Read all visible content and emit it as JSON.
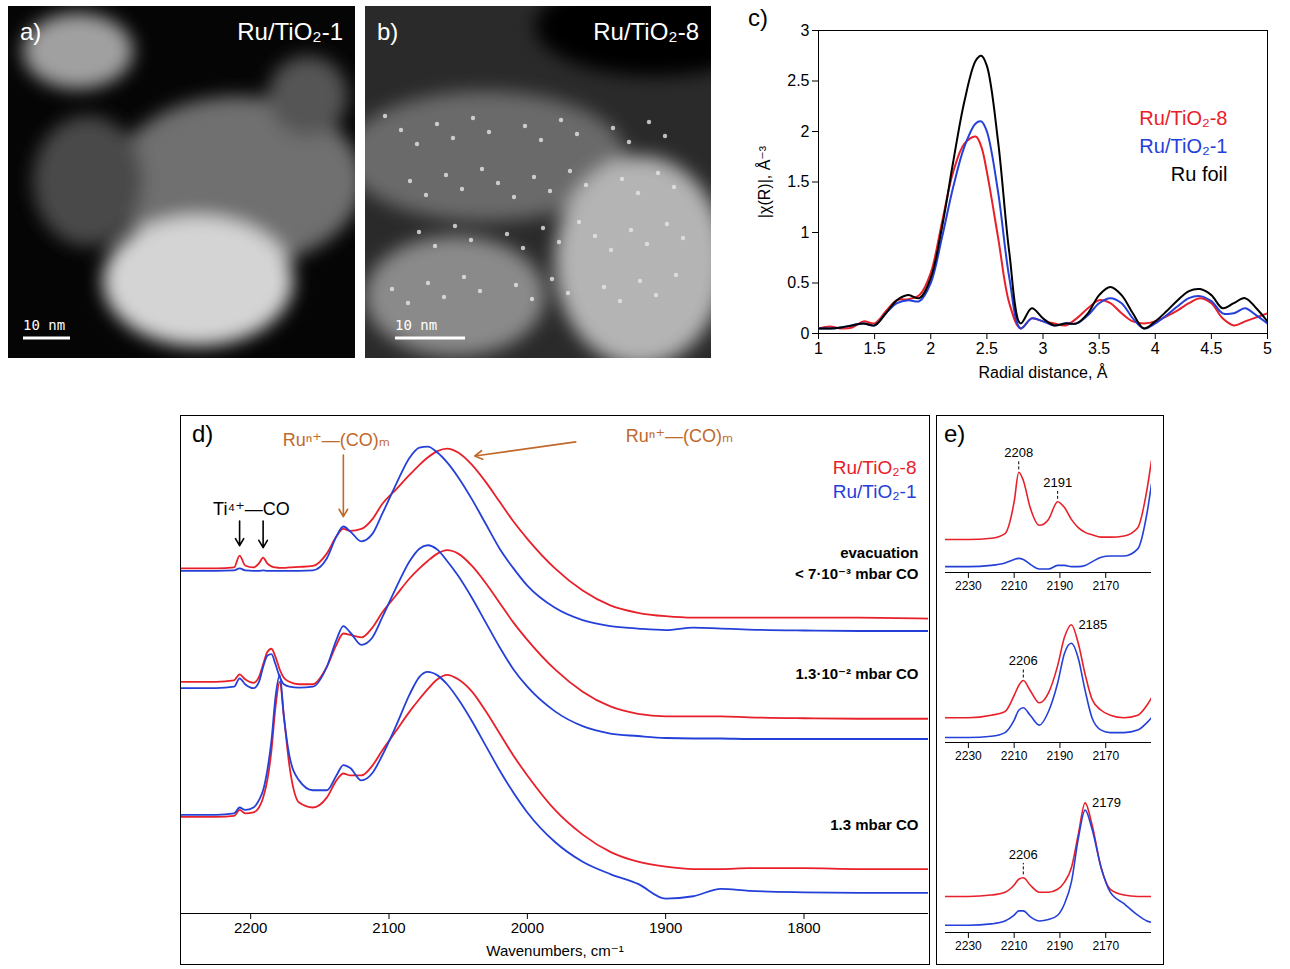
{
  "chart_data": [
    {
      "type": "image",
      "panel": "a)",
      "title": "Ru/TiO₂-1",
      "scale_bar": "10 nm"
    },
    {
      "type": "image",
      "panel": "b)",
      "title": "Ru/TiO₂-8",
      "scale_bar": "10 nm"
    },
    {
      "type": "line",
      "panel": "c)",
      "x_label": "Radial distance, Å",
      "y_label": "|χ(R)|, Å⁻³",
      "x": [
        1.0,
        1.1,
        1.2,
        1.3,
        1.4,
        1.5,
        1.6,
        1.7,
        1.8,
        1.9,
        2.0,
        2.1,
        2.2,
        2.3,
        2.4,
        2.45,
        2.5,
        2.6,
        2.7,
        2.8,
        2.9,
        3.0,
        3.1,
        3.2,
        3.3,
        3.4,
        3.5,
        3.6,
        3.7,
        3.8,
        3.9,
        4.0,
        4.1,
        4.2,
        4.3,
        4.4,
        4.5,
        4.6,
        4.7,
        4.8,
        4.9,
        5.0
      ],
      "xlim": [
        1,
        5
      ],
      "xticks": [
        1,
        1.5,
        2,
        2.5,
        3,
        3.5,
        4,
        4.5,
        5
      ],
      "ylim": [
        0,
        3
      ],
      "yticks": [
        0,
        0.5,
        1,
        1.5,
        2,
        2.5,
        3
      ],
      "legend": "top-right",
      "series": [
        {
          "name": "Ru/TiO₂-8",
          "color": "#e8202a",
          "values": [
            0.05,
            0.07,
            0.05,
            0.06,
            0.12,
            0.1,
            0.22,
            0.33,
            0.34,
            0.38,
            0.6,
            1.1,
            1.6,
            1.88,
            1.95,
            1.85,
            1.6,
            0.95,
            0.3,
            0.05,
            0.15,
            0.12,
            0.1,
            0.08,
            0.15,
            0.25,
            0.33,
            0.3,
            0.2,
            0.12,
            0.1,
            0.12,
            0.17,
            0.23,
            0.3,
            0.35,
            0.3,
            0.15,
            0.08,
            0.12,
            0.16,
            0.2
          ]
        },
        {
          "name": "Ru/TiO₂-1",
          "color": "#2540d8",
          "values": [
            0.05,
            0.05,
            0.06,
            0.08,
            0.1,
            0.08,
            0.2,
            0.3,
            0.33,
            0.32,
            0.5,
            0.95,
            1.45,
            1.85,
            2.08,
            2.1,
            2.0,
            1.4,
            0.55,
            0.05,
            0.15,
            0.12,
            0.08,
            0.1,
            0.1,
            0.18,
            0.3,
            0.35,
            0.3,
            0.15,
            0.05,
            0.1,
            0.18,
            0.27,
            0.35,
            0.37,
            0.32,
            0.2,
            0.2,
            0.25,
            0.18,
            0.1
          ]
        },
        {
          "name": "Ru foil",
          "color": "#000000",
          "values": [
            0.05,
            0.05,
            0.06,
            0.08,
            0.1,
            0.08,
            0.2,
            0.33,
            0.38,
            0.35,
            0.55,
            1.05,
            1.7,
            2.3,
            2.7,
            2.75,
            2.65,
            1.9,
            0.8,
            0.1,
            0.25,
            0.15,
            0.08,
            0.1,
            0.1,
            0.2,
            0.38,
            0.46,
            0.38,
            0.2,
            0.05,
            0.12,
            0.22,
            0.33,
            0.42,
            0.44,
            0.38,
            0.25,
            0.3,
            0.35,
            0.25,
            0.12
          ]
        }
      ]
    },
    {
      "type": "line",
      "panel": "d)",
      "x_label": "Wavenumbers, cm⁻¹",
      "x": [
        2250,
        2225,
        2212,
        2208,
        2204,
        2198,
        2194,
        2191,
        2188,
        2185,
        2182,
        2179,
        2176,
        2172,
        2165,
        2155,
        2145,
        2138,
        2133,
        2128,
        2120,
        2112,
        2105,
        2095,
        2085,
        2078,
        2072,
        2065,
        2058,
        2050,
        2040,
        2030,
        2020,
        2010,
        2000,
        1980,
        1960,
        1940,
        1920,
        1900,
        1880,
        1860,
        1840,
        1800,
        1760,
        1710
      ],
      "xlim": [
        2250,
        1710
      ],
      "xticks": [
        2200,
        2100,
        2000,
        1900,
        1800
      ],
      "ylim": [
        0,
        100
      ],
      "tick_labels": "x",
      "legend": "top-right",
      "groups": [
        {
          "label": [
            "evacuation",
            "< 7·10⁻³ mbar CO"
          ],
          "series": [
            {
              "name": "Ru/TiO₂-8",
              "color": "#e8202a",
              "values": [
                70,
                70,
                70.2,
                72.6,
                70.6,
                70.2,
                71,
                72.2,
                71,
                70.4,
                70.2,
                70.1,
                70.1,
                70.2,
                70.3,
                70.5,
                73,
                76.5,
                78,
                77.6,
                78,
                80,
                83,
                86,
                89,
                91,
                92.5,
                93.8,
                94.3,
                93.5,
                91,
                87.5,
                83.5,
                79.5,
                76,
                70,
                65.5,
                62.5,
                61,
                60.3,
                60,
                60,
                60,
                60,
                60,
                59.8
              ]
            },
            {
              "name": "Ru/TiO₂-1",
              "color": "#2540d8",
              "values": [
                69.5,
                69.5,
                69.6,
                70,
                69.6,
                69.5,
                69.5,
                69.6,
                69.5,
                69.5,
                69.5,
                69.5,
                69.5,
                69.5,
                69.5,
                69.6,
                72,
                76.5,
                78.5,
                77.5,
                75.5,
                77,
                81,
                87,
                92.5,
                94.5,
                94.7,
                93.5,
                91.5,
                88.5,
                84,
                79,
                74,
                70,
                66.5,
                62,
                59.5,
                58.3,
                57.8,
                57.5,
                58,
                57.8,
                57.6,
                57.4,
                57.3,
                57.3
              ]
            }
          ]
        },
        {
          "label": [
            "1.3·10⁻² mbar CO"
          ],
          "series": [
            {
              "name": "Ru/TiO₂-8",
              "color": "#e8202a",
              "values": [
                47,
                47,
                47.3,
                48.5,
                47.5,
                46.8,
                48,
                50.5,
                53,
                53.7,
                52,
                49.5,
                47.8,
                47,
                46.5,
                46.5,
                50,
                54.5,
                56.8,
                56.5,
                56,
                58,
                61,
                64.5,
                68,
                70,
                71.5,
                73,
                73.7,
                73,
                70.5,
                67,
                63,
                59,
                55.5,
                49.5,
                45,
                42,
                40.5,
                40,
                40,
                40,
                39.8,
                39.6,
                39.5,
                39.5
              ]
            },
            {
              "name": "Ru/TiO₂-1",
              "color": "#2540d8",
              "values": [
                45.7,
                45.7,
                46,
                47.7,
                46.5,
                45.7,
                47,
                50,
                52.3,
                52.6,
                50.5,
                48,
                46.5,
                46,
                45.8,
                46,
                50,
                55.5,
                58.3,
                57,
                54.5,
                56,
                60,
                66,
                71.5,
                74,
                74.7,
                73.8,
                71.5,
                68.5,
                64,
                59,
                54,
                49.5,
                46,
                41,
                38,
                36.5,
                36,
                35.6,
                35.5,
                35.5,
                35.4,
                35.4,
                35.4,
                35.4
              ]
            }
          ]
        },
        {
          "label": [
            "1.3 mbar CO"
          ],
          "series": [
            {
              "name": "Ru/TiO₂-8",
              "color": "#e8202a",
              "values": [
                19.6,
                19.6,
                19.8,
                21,
                20.3,
                20.5,
                21.5,
                23.5,
                27,
                33,
                42,
                47,
                40,
                30,
                22.5,
                21.5,
                23.5,
                27,
                28.4,
                28,
                28,
                30,
                33,
                37,
                41,
                43.5,
                45.5,
                47.5,
                48.4,
                47.5,
                45,
                41,
                36.5,
                32,
                28,
                21,
                16,
                12.5,
                10.5,
                9.5,
                9,
                9,
                9.2,
                9.2,
                9,
                9
              ]
            },
            {
              "name": "Ru/TiO₂-1",
              "color": "#2540d8",
              "values": [
                20,
                20,
                20.3,
                21.5,
                21,
                21.5,
                23,
                25,
                29,
                35,
                44,
                48.4,
                40,
                32,
                27,
                25,
                25,
                28,
                30.1,
                29.5,
                27,
                28.5,
                32,
                38,
                44.5,
                48,
                49,
                48.3,
                46.5,
                43.5,
                39,
                34,
                29,
                24.5,
                20.5,
                14.5,
                10.5,
                8,
                6,
                3,
                3.5,
                5,
                4.6,
                4.3,
                4.2,
                4.2
              ]
            }
          ]
        }
      ],
      "annotations": [
        {
          "text": "Ti⁴⁺—CO",
          "x": [
            2208,
            2191
          ],
          "color": "#000000"
        },
        {
          "text": "Ruⁿ⁺—(CO)ₘ",
          "x": [
            2133
          ],
          "color": "#c0692b"
        },
        {
          "text": "Ruⁿ⁺—(CO)ₘ",
          "x": [
            2060
          ],
          "color": "#c0692b"
        }
      ]
    },
    {
      "type": "line",
      "panel": "e)",
      "x": [
        2240,
        2230,
        2220,
        2214,
        2210,
        2208,
        2206,
        2203,
        2199,
        2195,
        2191,
        2188,
        2185,
        2182,
        2179,
        2176,
        2172,
        2168,
        2162,
        2156,
        2152,
        2150
      ],
      "xlim": [
        2240,
        2150
      ],
      "xticks": [
        2230,
        2210,
        2190,
        2170
      ],
      "ylim": [
        0,
        100
      ],
      "tick_labels": "x",
      "panels": [
        {
          "peaks": [
            {
              "value": 2208,
              "line_style": "dashed"
            },
            {
              "value": 2191,
              "line_style": "dashed"
            }
          ],
          "series": [
            {
              "color": "#e8202a",
              "values": [
                28,
                28,
                29,
                33,
                60,
                85,
                78,
                55,
                40,
                45,
                60,
                55,
                45,
                38,
                34,
                32,
                30,
                30,
                31,
                38,
                70,
                95
              ]
            },
            {
              "color": "#2540d8",
              "values": [
                5,
                5,
                6,
                8,
                11,
                12,
                11,
                7,
                3,
                3,
                6,
                6,
                5,
                5,
                6,
                9,
                13,
                14,
                14,
                20,
                50,
                75
              ]
            }
          ]
        },
        {
          "peaks": [
            {
              "value": 2206,
              "line_style": "dashed"
            },
            {
              "value": 2185
            }
          ],
          "series": [
            {
              "color": "#e8202a",
              "values": [
                20,
                20,
                22,
                25,
                38,
                46,
                50,
                42,
                32,
                40,
                62,
                85,
                95,
                80,
                55,
                35,
                26,
                22,
                20,
                22,
                30,
                36
              ]
            },
            {
              "color": "#2540d8",
              "values": [
                4,
                4,
                5,
                8,
                18,
                26,
                28,
                22,
                14,
                25,
                48,
                72,
                80,
                68,
                42,
                20,
                10,
                8,
                8,
                10,
                16,
                20
              ]
            }
          ]
        },
        {
          "peaks": [
            {
              "value": 2206,
              "line_style": "dashed"
            },
            {
              "value": 2179
            }
          ],
          "series": [
            {
              "color": "#e8202a",
              "values": [
                25,
                25,
                26,
                28,
                33,
                37,
                38,
                33,
                28,
                28,
                30,
                35,
                45,
                68,
                90,
                75,
                45,
                30,
                26,
                25,
                25,
                25
              ]
            },
            {
              "color": "#2540d8",
              "values": [
                5,
                5,
                6,
                8,
                12,
                15,
                15,
                11,
                8,
                9,
                12,
                20,
                35,
                65,
                85,
                72,
                45,
                28,
                20,
                12,
                8,
                7
              ]
            }
          ]
        }
      ]
    }
  ]
}
